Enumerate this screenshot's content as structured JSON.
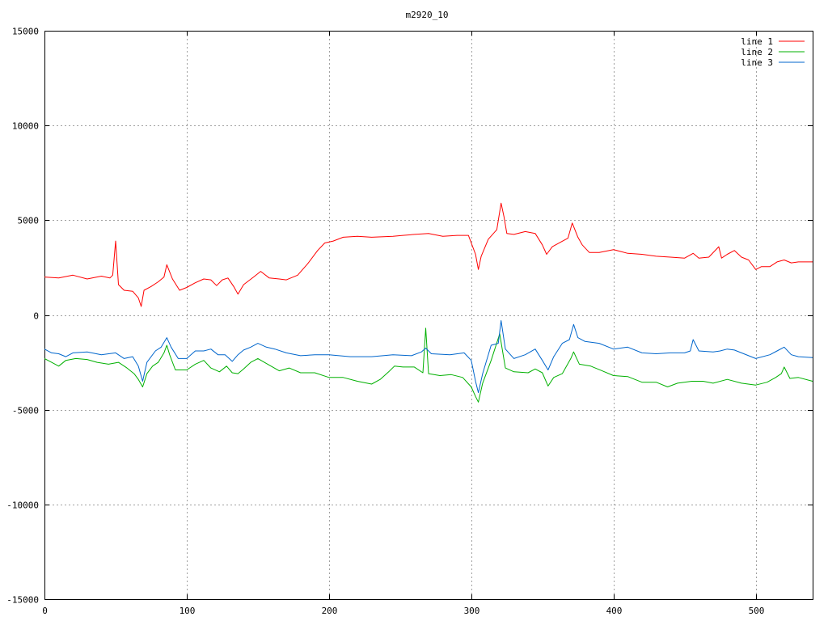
{
  "chart_data": {
    "type": "line",
    "title": "m2920_10",
    "xlabel": "",
    "ylabel": "",
    "xlim": [
      0,
      540
    ],
    "ylim": [
      -15000,
      15000
    ],
    "xticks": [
      0,
      100,
      200,
      300,
      400,
      500
    ],
    "yticks": [
      -15000,
      -10000,
      -5000,
      0,
      5000,
      10000,
      15000
    ],
    "grid": true,
    "legend_position": "top-right",
    "series": [
      {
        "name": "line 1",
        "color": "#ff0000",
        "points": [
          [
            0,
            2000
          ],
          [
            10,
            1950
          ],
          [
            20,
            2100
          ],
          [
            30,
            1900
          ],
          [
            40,
            2050
          ],
          [
            46,
            1950
          ],
          [
            48,
            2100
          ],
          [
            50,
            3900
          ],
          [
            52,
            1600
          ],
          [
            56,
            1300
          ],
          [
            62,
            1250
          ],
          [
            66,
            900
          ],
          [
            68,
            450
          ],
          [
            70,
            1300
          ],
          [
            75,
            1500
          ],
          [
            80,
            1750
          ],
          [
            84,
            2000
          ],
          [
            86,
            2650
          ],
          [
            90,
            1900
          ],
          [
            95,
            1300
          ],
          [
            100,
            1450
          ],
          [
            106,
            1700
          ],
          [
            112,
            1900
          ],
          [
            117,
            1850
          ],
          [
            121,
            1550
          ],
          [
            125,
            1850
          ],
          [
            129,
            1950
          ],
          [
            133,
            1500
          ],
          [
            136,
            1100
          ],
          [
            140,
            1600
          ],
          [
            147,
            2000
          ],
          [
            152,
            2300
          ],
          [
            158,
            1950
          ],
          [
            165,
            1900
          ],
          [
            170,
            1850
          ],
          [
            178,
            2100
          ],
          [
            185,
            2700
          ],
          [
            192,
            3400
          ],
          [
            197,
            3800
          ],
          [
            203,
            3900
          ],
          [
            210,
            4100
          ],
          [
            220,
            4150
          ],
          [
            230,
            4100
          ],
          [
            245,
            4150
          ],
          [
            252,
            4200
          ],
          [
            260,
            4250
          ],
          [
            270,
            4300
          ],
          [
            280,
            4150
          ],
          [
            290,
            4200
          ],
          [
            298,
            4200
          ],
          [
            303,
            3200
          ],
          [
            305,
            2400
          ],
          [
            307,
            3100
          ],
          [
            312,
            4000
          ],
          [
            318,
            4500
          ],
          [
            321,
            5900
          ],
          [
            323,
            5200
          ],
          [
            325,
            4300
          ],
          [
            330,
            4250
          ],
          [
            338,
            4400
          ],
          [
            345,
            4300
          ],
          [
            350,
            3700
          ],
          [
            353,
            3200
          ],
          [
            357,
            3600
          ],
          [
            363,
            3850
          ],
          [
            368,
            4050
          ],
          [
            371,
            4850
          ],
          [
            375,
            4100
          ],
          [
            378,
            3700
          ],
          [
            383,
            3300
          ],
          [
            390,
            3300
          ],
          [
            400,
            3450
          ],
          [
            410,
            3250
          ],
          [
            420,
            3200
          ],
          [
            430,
            3100
          ],
          [
            440,
            3050
          ],
          [
            450,
            3000
          ],
          [
            456,
            3250
          ],
          [
            460,
            3000
          ],
          [
            467,
            3050
          ],
          [
            474,
            3600
          ],
          [
            476,
            3000
          ],
          [
            480,
            3200
          ],
          [
            485,
            3400
          ],
          [
            490,
            3050
          ],
          [
            495,
            2900
          ],
          [
            500,
            2400
          ],
          [
            504,
            2550
          ],
          [
            510,
            2550
          ],
          [
            515,
            2800
          ],
          [
            520,
            2900
          ],
          [
            525,
            2750
          ],
          [
            530,
            2800
          ],
          [
            540,
            2800
          ]
        ]
      },
      {
        "name": "line 2",
        "color": "#00b000",
        "points": [
          [
            0,
            -2300
          ],
          [
            5,
            -2500
          ],
          [
            10,
            -2700
          ],
          [
            15,
            -2400
          ],
          [
            22,
            -2300
          ],
          [
            30,
            -2350
          ],
          [
            37,
            -2500
          ],
          [
            45,
            -2600
          ],
          [
            52,
            -2500
          ],
          [
            58,
            -2800
          ],
          [
            63,
            -3100
          ],
          [
            66,
            -3400
          ],
          [
            69,
            -3800
          ],
          [
            72,
            -3100
          ],
          [
            76,
            -2700
          ],
          [
            80,
            -2500
          ],
          [
            84,
            -2000
          ],
          [
            86,
            -1600
          ],
          [
            88,
            -2100
          ],
          [
            92,
            -2900
          ],
          [
            100,
            -2900
          ],
          [
            106,
            -2600
          ],
          [
            112,
            -2400
          ],
          [
            117,
            -2800
          ],
          [
            123,
            -3000
          ],
          [
            128,
            -2700
          ],
          [
            132,
            -3050
          ],
          [
            136,
            -3100
          ],
          [
            140,
            -2850
          ],
          [
            145,
            -2500
          ],
          [
            150,
            -2300
          ],
          [
            158,
            -2650
          ],
          [
            165,
            -2950
          ],
          [
            172,
            -2800
          ],
          [
            180,
            -3050
          ],
          [
            190,
            -3050
          ],
          [
            200,
            -3300
          ],
          [
            210,
            -3300
          ],
          [
            220,
            -3500
          ],
          [
            230,
            -3650
          ],
          [
            236,
            -3400
          ],
          [
            242,
            -3000
          ],
          [
            246,
            -2700
          ],
          [
            252,
            -2750
          ],
          [
            260,
            -2750
          ],
          [
            266,
            -3050
          ],
          [
            268,
            -700
          ],
          [
            270,
            -3100
          ],
          [
            278,
            -3200
          ],
          [
            286,
            -3150
          ],
          [
            294,
            -3300
          ],
          [
            300,
            -3800
          ],
          [
            303,
            -4300
          ],
          [
            305,
            -4600
          ],
          [
            308,
            -3600
          ],
          [
            314,
            -2400
          ],
          [
            320,
            -1000
          ],
          [
            324,
            -2800
          ],
          [
            330,
            -3000
          ],
          [
            340,
            -3050
          ],
          [
            345,
            -2850
          ],
          [
            350,
            -3050
          ],
          [
            354,
            -3750
          ],
          [
            358,
            -3300
          ],
          [
            364,
            -3100
          ],
          [
            370,
            -2300
          ],
          [
            372,
            -1950
          ],
          [
            376,
            -2600
          ],
          [
            384,
            -2700
          ],
          [
            392,
            -2950
          ],
          [
            400,
            -3200
          ],
          [
            410,
            -3250
          ],
          [
            420,
            -3550
          ],
          [
            430,
            -3550
          ],
          [
            438,
            -3800
          ],
          [
            445,
            -3600
          ],
          [
            455,
            -3500
          ],
          [
            463,
            -3500
          ],
          [
            470,
            -3600
          ],
          [
            480,
            -3400
          ],
          [
            490,
            -3600
          ],
          [
            500,
            -3700
          ],
          [
            508,
            -3550
          ],
          [
            514,
            -3300
          ],
          [
            518,
            -3100
          ],
          [
            520,
            -2750
          ],
          [
            524,
            -3350
          ],
          [
            530,
            -3300
          ],
          [
            540,
            -3500
          ]
        ]
      },
      {
        "name": "line 3",
        "color": "#0066cc",
        "points": [
          [
            0,
            -1800
          ],
          [
            5,
            -2000
          ],
          [
            10,
            -2050
          ],
          [
            15,
            -2200
          ],
          [
            20,
            -2000
          ],
          [
            30,
            -1950
          ],
          [
            40,
            -2100
          ],
          [
            50,
            -2000
          ],
          [
            56,
            -2300
          ],
          [
            62,
            -2200
          ],
          [
            66,
            -2700
          ],
          [
            69,
            -3500
          ],
          [
            72,
            -2500
          ],
          [
            78,
            -1900
          ],
          [
            82,
            -1700
          ],
          [
            86,
            -1200
          ],
          [
            89,
            -1700
          ],
          [
            94,
            -2300
          ],
          [
            100,
            -2300
          ],
          [
            106,
            -1900
          ],
          [
            112,
            -1900
          ],
          [
            117,
            -1800
          ],
          [
            122,
            -2100
          ],
          [
            127,
            -2100
          ],
          [
            132,
            -2450
          ],
          [
            136,
            -2100
          ],
          [
            140,
            -1850
          ],
          [
            145,
            -1700
          ],
          [
            150,
            -1500
          ],
          [
            156,
            -1700
          ],
          [
            162,
            -1800
          ],
          [
            170,
            -2000
          ],
          [
            180,
            -2150
          ],
          [
            190,
            -2100
          ],
          [
            200,
            -2100
          ],
          [
            215,
            -2200
          ],
          [
            230,
            -2200
          ],
          [
            245,
            -2100
          ],
          [
            258,
            -2150
          ],
          [
            265,
            -1950
          ],
          [
            268,
            -1750
          ],
          [
            272,
            -2050
          ],
          [
            285,
            -2100
          ],
          [
            295,
            -2000
          ],
          [
            300,
            -2400
          ],
          [
            303,
            -3500
          ],
          [
            305,
            -4100
          ],
          [
            308,
            -3100
          ],
          [
            314,
            -1600
          ],
          [
            319,
            -1500
          ],
          [
            321,
            -300
          ],
          [
            324,
            -1800
          ],
          [
            330,
            -2300
          ],
          [
            338,
            -2100
          ],
          [
            345,
            -1800
          ],
          [
            350,
            -2400
          ],
          [
            354,
            -2900
          ],
          [
            358,
            -2200
          ],
          [
            364,
            -1500
          ],
          [
            369,
            -1300
          ],
          [
            372,
            -500
          ],
          [
            375,
            -1200
          ],
          [
            380,
            -1400
          ],
          [
            390,
            -1500
          ],
          [
            400,
            -1800
          ],
          [
            410,
            -1700
          ],
          [
            420,
            -2000
          ],
          [
            430,
            -2050
          ],
          [
            440,
            -2000
          ],
          [
            450,
            -2000
          ],
          [
            454,
            -1900
          ],
          [
            456,
            -1300
          ],
          [
            460,
            -1900
          ],
          [
            470,
            -1950
          ],
          [
            475,
            -1900
          ],
          [
            480,
            -1800
          ],
          [
            485,
            -1850
          ],
          [
            490,
            -2000
          ],
          [
            500,
            -2300
          ],
          [
            510,
            -2100
          ],
          [
            515,
            -1900
          ],
          [
            520,
            -1700
          ],
          [
            525,
            -2100
          ],
          [
            530,
            -2200
          ],
          [
            540,
            -2250
          ]
        ]
      }
    ]
  }
}
